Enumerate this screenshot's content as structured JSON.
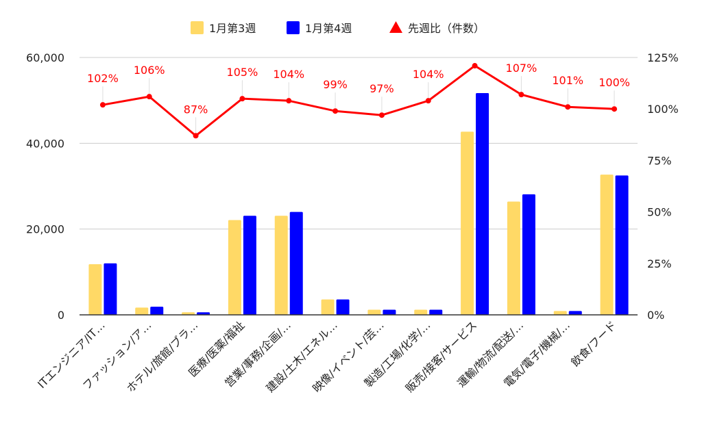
{
  "chart_data": {
    "type": "bar",
    "categories": [
      "ITエンジニア/IT…",
      "ファッション/ア…",
      "ホテル/旅館/ブラ…",
      "医療/医薬/福祉",
      "営業/事務/企画/…",
      "建設/土木/エネル…",
      "映像/イベント/芸…",
      "製造/工場/化学/…",
      "販売/接客/サービス",
      "運輸/物流/配送/…",
      "電気/電子/機械/…",
      "飲食/フード"
    ],
    "series": [
      {
        "name": "1月第3週",
        "type": "bar",
        "axis": "left",
        "color": "#FFD966",
        "values": [
          11800,
          1700,
          600,
          22100,
          23100,
          3600,
          1200,
          1200,
          42700,
          26400,
          900,
          32700
        ]
      },
      {
        "name": "1月第4週",
        "type": "bar",
        "axis": "left",
        "color": "#0000FF",
        "values": [
          12000,
          1900,
          600,
          23100,
          24000,
          3600,
          1200,
          1200,
          51700,
          28100,
          900,
          32500
        ]
      },
      {
        "name": "先週比（件数）",
        "type": "line",
        "axis": "right",
        "color": "#FF0000",
        "values": [
          102,
          106,
          87,
          105,
          104,
          99,
          97,
          104,
          121,
          107,
          101,
          100
        ],
        "labels": [
          "102%",
          "106%",
          "87%",
          "105%",
          "104%",
          "99%",
          "97%",
          "104%",
          "",
          "107%",
          "101%",
          "100%"
        ]
      }
    ],
    "y_left": {
      "range": [
        0,
        60000
      ],
      "ticks": [
        0,
        20000,
        40000,
        60000
      ],
      "tick_labels": [
        "0",
        "20,000",
        "40,000",
        "60,000"
      ]
    },
    "y_right": {
      "range": [
        0,
        125
      ],
      "ticks": [
        0,
        25,
        50,
        75,
        100,
        125
      ],
      "tick_labels": [
        "0%",
        "25%",
        "50%",
        "75%",
        "100%",
        "125%"
      ]
    },
    "grid": true,
    "legend_position": "top-center"
  }
}
